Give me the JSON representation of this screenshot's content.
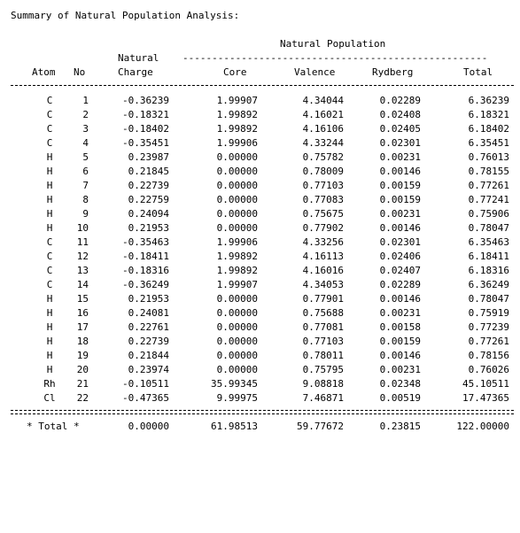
{
  "title": "Summary of Natural Population Analysis:",
  "headers": {
    "natural_population": "Natural Population",
    "natural": "Natural",
    "charge": "Charge",
    "atom": "Atom",
    "no": "No",
    "core": "Core",
    "valence": "Valence",
    "rydberg": "Rydberg",
    "total": "Total"
  },
  "rows": [
    {
      "atom": "C",
      "no": "1",
      "charge": "-0.36239",
      "core": "1.99907",
      "valence": "4.34044",
      "rydberg": "0.02289",
      "total": "6.36239"
    },
    {
      "atom": "C",
      "no": "2",
      "charge": "-0.18321",
      "core": "1.99892",
      "valence": "4.16021",
      "rydberg": "0.02408",
      "total": "6.18321"
    },
    {
      "atom": "C",
      "no": "3",
      "charge": "-0.18402",
      "core": "1.99892",
      "valence": "4.16106",
      "rydberg": "0.02405",
      "total": "6.18402"
    },
    {
      "atom": "C",
      "no": "4",
      "charge": "-0.35451",
      "core": "1.99906",
      "valence": "4.33244",
      "rydberg": "0.02301",
      "total": "6.35451"
    },
    {
      "atom": "H",
      "no": "5",
      "charge": "0.23987",
      "core": "0.00000",
      "valence": "0.75782",
      "rydberg": "0.00231",
      "total": "0.76013"
    },
    {
      "atom": "H",
      "no": "6",
      "charge": "0.21845",
      "core": "0.00000",
      "valence": "0.78009",
      "rydberg": "0.00146",
      "total": "0.78155"
    },
    {
      "atom": "H",
      "no": "7",
      "charge": "0.22739",
      "core": "0.00000",
      "valence": "0.77103",
      "rydberg": "0.00159",
      "total": "0.77261"
    },
    {
      "atom": "H",
      "no": "8",
      "charge": "0.22759",
      "core": "0.00000",
      "valence": "0.77083",
      "rydberg": "0.00159",
      "total": "0.77241"
    },
    {
      "atom": "H",
      "no": "9",
      "charge": "0.24094",
      "core": "0.00000",
      "valence": "0.75675",
      "rydberg": "0.00231",
      "total": "0.75906"
    },
    {
      "atom": "H",
      "no": "10",
      "charge": "0.21953",
      "core": "0.00000",
      "valence": "0.77902",
      "rydberg": "0.00146",
      "total": "0.78047"
    },
    {
      "atom": "C",
      "no": "11",
      "charge": "-0.35463",
      "core": "1.99906",
      "valence": "4.33256",
      "rydberg": "0.02301",
      "total": "6.35463"
    },
    {
      "atom": "C",
      "no": "12",
      "charge": "-0.18411",
      "core": "1.99892",
      "valence": "4.16113",
      "rydberg": "0.02406",
      "total": "6.18411"
    },
    {
      "atom": "C",
      "no": "13",
      "charge": "-0.18316",
      "core": "1.99892",
      "valence": "4.16016",
      "rydberg": "0.02407",
      "total": "6.18316"
    },
    {
      "atom": "C",
      "no": "14",
      "charge": "-0.36249",
      "core": "1.99907",
      "valence": "4.34053",
      "rydberg": "0.02289",
      "total": "6.36249"
    },
    {
      "atom": "H",
      "no": "15",
      "charge": "0.21953",
      "core": "0.00000",
      "valence": "0.77901",
      "rydberg": "0.00146",
      "total": "0.78047"
    },
    {
      "atom": "H",
      "no": "16",
      "charge": "0.24081",
      "core": "0.00000",
      "valence": "0.75688",
      "rydberg": "0.00231",
      "total": "0.75919"
    },
    {
      "atom": "H",
      "no": "17",
      "charge": "0.22761",
      "core": "0.00000",
      "valence": "0.77081",
      "rydberg": "0.00158",
      "total": "0.77239"
    },
    {
      "atom": "H",
      "no": "18",
      "charge": "0.22739",
      "core": "0.00000",
      "valence": "0.77103",
      "rydberg": "0.00159",
      "total": "0.77261"
    },
    {
      "atom": "H",
      "no": "19",
      "charge": "0.21844",
      "core": "0.00000",
      "valence": "0.78011",
      "rydberg": "0.00146",
      "total": "0.78156"
    },
    {
      "atom": "H",
      "no": "20",
      "charge": "0.23974",
      "core": "0.00000",
      "valence": "0.75795",
      "rydberg": "0.00231",
      "total": "0.76026"
    },
    {
      "atom": "Rh",
      "no": "21",
      "charge": "-0.10511",
      "core": "35.99345",
      "valence": "9.08818",
      "rydberg": "0.02348",
      "total": "45.10511"
    },
    {
      "atom": "Cl",
      "no": "22",
      "charge": "-0.47365",
      "core": "9.99975",
      "valence": "7.46871",
      "rydberg": "0.00519",
      "total": "17.47365"
    }
  ],
  "total_row": {
    "label": "* Total *",
    "charge": "0.00000",
    "core": "61.98513",
    "valence": "59.77672",
    "rydberg": "0.23815",
    "total": "122.00000"
  }
}
